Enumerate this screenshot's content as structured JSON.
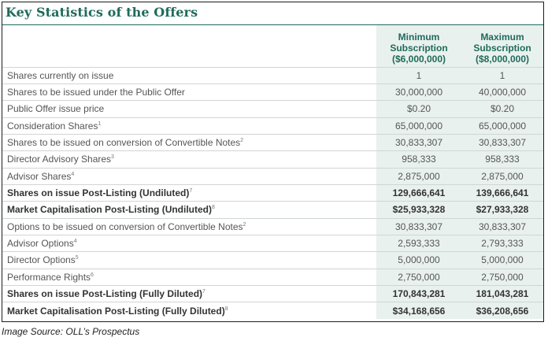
{
  "title": "Key Statistics of the Offers",
  "columns": {
    "min": [
      "Minimum",
      "Subscription",
      "($6,000,000)"
    ],
    "max": [
      "Maximum",
      "Subscription",
      "($8,000,000)"
    ]
  },
  "rows": [
    {
      "label": "Shares currently on issue",
      "sup": "",
      "min": "1",
      "max": "1",
      "bold": false
    },
    {
      "label": "Shares to be issued under the Public Offer",
      "sup": "",
      "min": "30,000,000",
      "max": "40,000,000",
      "bold": false
    },
    {
      "label": "Public Offer issue price",
      "sup": "",
      "min": "$0.20",
      "max": "$0.20",
      "bold": false
    },
    {
      "label": "Consideration Shares",
      "sup": "1",
      "min": "65,000,000",
      "max": "65,000,000",
      "bold": false
    },
    {
      "label": "Shares to be issued on conversion of Convertible Notes",
      "sup": "2",
      "min": "30,833,307",
      "max": "30,833,307",
      "bold": false
    },
    {
      "label": "Director Advisory Shares",
      "sup": "3",
      "min": "958,333",
      "max": "958,333",
      "bold": false
    },
    {
      "label": "Advisor Shares",
      "sup": "4",
      "min": "2,875,000",
      "max": "2,875,000",
      "bold": false
    },
    {
      "label": "Shares on issue Post-Listing (Undiluted)",
      "sup": "7",
      "min": "129,666,641",
      "max": "139,666,641",
      "bold": true
    },
    {
      "label": "Market Capitalisation Post-Listing (Undiluted)",
      "sup": "8",
      "min": "$25,933,328",
      "max": "$27,933,328",
      "bold": true
    },
    {
      "label": "Options to be issued on conversion of Convertible Notes",
      "sup": "2",
      "min": "30,833,307",
      "max": "30,833,307",
      "bold": false
    },
    {
      "label": "Advisor Options",
      "sup": "4",
      "min": "2,593,333",
      "max": "2,793,333",
      "bold": false
    },
    {
      "label": "Director Options",
      "sup": "5",
      "min": "5,000,000",
      "max": "5,000,000",
      "bold": false
    },
    {
      "label": "Performance Rights",
      "sup": "6",
      "min": "2,750,000",
      "max": "2,750,000",
      "bold": false
    },
    {
      "label": "Shares on issue Post-Listing (Fully Diluted)",
      "sup": "7",
      "min": "170,843,281",
      "max": "181,043,281",
      "bold": true
    },
    {
      "label": "Market Capitalisation Post-Listing (Fully Diluted)",
      "sup": "8",
      "min": "$34,168,656",
      "max": "$36,208,656",
      "bold": true
    }
  ],
  "source": "Image Source: OLL’s Prospectus"
}
